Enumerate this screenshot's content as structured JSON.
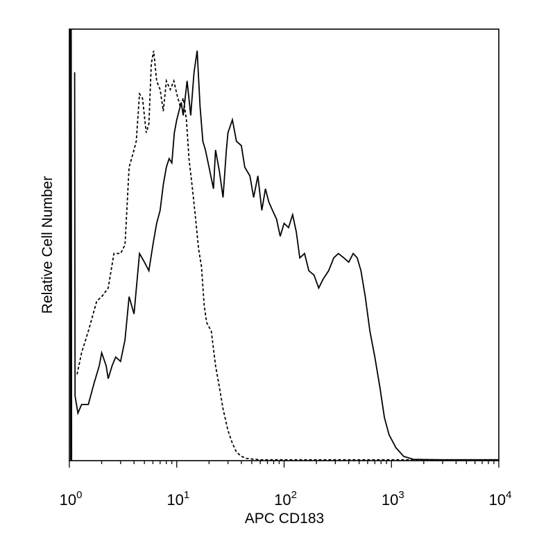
{
  "chart_data": {
    "type": "line",
    "title": "",
    "xlabel": "APC CD183",
    "ylabel": "Relative Cell Number",
    "x_scale": "log",
    "xlim": [
      1,
      10000
    ],
    "x_ticks": [
      {
        "value": 1,
        "base": "10",
        "exp": "0"
      },
      {
        "value": 10,
        "base": "10",
        "exp": "1"
      },
      {
        "value": 100,
        "base": "10",
        "exp": "2"
      },
      {
        "value": 1000,
        "base": "10",
        "exp": "3"
      },
      {
        "value": 10000,
        "base": "10",
        "exp": "4"
      }
    ],
    "ylim": [
      0,
      100
    ],
    "y_ticks": "none",
    "grid": false,
    "series": [
      {
        "style": "solid",
        "color": "#000000",
        "points": [
          [
            1.12,
            90
          ],
          [
            1.13,
            15
          ],
          [
            1.2,
            11
          ],
          [
            1.3,
            13
          ],
          [
            1.5,
            13
          ],
          [
            1.7,
            18
          ],
          [
            1.9,
            22
          ],
          [
            2.0,
            25
          ],
          [
            2.2,
            22
          ],
          [
            2.3,
            19
          ],
          [
            2.5,
            22
          ],
          [
            2.7,
            24
          ],
          [
            3.0,
            23
          ],
          [
            3.3,
            28
          ],
          [
            3.6,
            38
          ],
          [
            4.0,
            34
          ],
          [
            4.5,
            48
          ],
          [
            5.0,
            46
          ],
          [
            5.5,
            44
          ],
          [
            6.0,
            50
          ],
          [
            6.5,
            55
          ],
          [
            7.0,
            58
          ],
          [
            7.5,
            64
          ],
          [
            8.0,
            68
          ],
          [
            8.5,
            70
          ],
          [
            9.0,
            69
          ],
          [
            9.5,
            76
          ],
          [
            10.0,
            79
          ],
          [
            11.0,
            83
          ],
          [
            11.5,
            80
          ],
          [
            12.5,
            88
          ],
          [
            13.5,
            80
          ],
          [
            14.5,
            90
          ],
          [
            15.5,
            95
          ],
          [
            16.5,
            82
          ],
          [
            17.5,
            74
          ],
          [
            18.5,
            72
          ],
          [
            20.0,
            68
          ],
          [
            22.0,
            63
          ],
          [
            23.0,
            72
          ],
          [
            25.0,
            67
          ],
          [
            27.0,
            61
          ],
          [
            29.0,
            72
          ],
          [
            30.0,
            76
          ],
          [
            33.0,
            79
          ],
          [
            36.0,
            74
          ],
          [
            40.0,
            73
          ],
          [
            43.0,
            68
          ],
          [
            48.0,
            66
          ],
          [
            52.0,
            61
          ],
          [
            57.0,
            66
          ],
          [
            62.0,
            58
          ],
          [
            67.0,
            63
          ],
          [
            72.0,
            60
          ],
          [
            78.0,
            58
          ],
          [
            85.0,
            56
          ],
          [
            92.0,
            52
          ],
          [
            100.0,
            55
          ],
          [
            110.0,
            54
          ],
          [
            120.0,
            57
          ],
          [
            130.0,
            53
          ],
          [
            140.0,
            47
          ],
          [
            155.0,
            48
          ],
          [
            170.0,
            44
          ],
          [
            190.0,
            43
          ],
          [
            210.0,
            40
          ],
          [
            230.0,
            42
          ],
          [
            260.0,
            44
          ],
          [
            290.0,
            47
          ],
          [
            320.0,
            48
          ],
          [
            360.0,
            47
          ],
          [
            400.0,
            46
          ],
          [
            440.0,
            48
          ],
          [
            480.0,
            47
          ],
          [
            520.0,
            44
          ],
          [
            570.0,
            38
          ],
          [
            630.0,
            30
          ],
          [
            700.0,
            24
          ],
          [
            780.0,
            17
          ],
          [
            860.0,
            10
          ],
          [
            950.0,
            6
          ],
          [
            1100.0,
            3
          ],
          [
            1300.0,
            1
          ],
          [
            1600.0,
            0.3
          ],
          [
            3000.0,
            0.2
          ],
          [
            10000.0,
            0.2
          ]
        ]
      },
      {
        "style": "dashed",
        "color": "#000000",
        "points": [
          [
            1.18,
            20
          ],
          [
            1.3,
            25
          ],
          [
            1.5,
            30
          ],
          [
            1.8,
            37
          ],
          [
            2.0,
            38
          ],
          [
            2.3,
            40
          ],
          [
            2.6,
            48
          ],
          [
            3.0,
            48
          ],
          [
            3.3,
            50
          ],
          [
            3.6,
            68
          ],
          [
            3.8,
            70
          ],
          [
            4.2,
            74
          ],
          [
            4.5,
            85
          ],
          [
            4.8,
            84
          ],
          [
            5.2,
            76
          ],
          [
            5.5,
            78
          ],
          [
            5.8,
            92
          ],
          [
            6.1,
            95
          ],
          [
            6.5,
            88
          ],
          [
            7.0,
            86
          ],
          [
            7.5,
            81
          ],
          [
            8.0,
            88
          ],
          [
            8.7,
            86
          ],
          [
            9.4,
            88
          ],
          [
            10.0,
            85
          ],
          [
            10.8,
            82
          ],
          [
            11.5,
            84
          ],
          [
            12.3,
            79
          ],
          [
            13.0,
            70
          ],
          [
            14.0,
            63
          ],
          [
            15.0,
            56
          ],
          [
            16.0,
            49
          ],
          [
            17.0,
            45
          ],
          [
            18.0,
            36
          ],
          [
            19.0,
            32
          ],
          [
            21.0,
            30
          ],
          [
            23.0,
            22
          ],
          [
            25.0,
            17
          ],
          [
            27.0,
            12
          ],
          [
            30.0,
            7
          ],
          [
            33.0,
            4
          ],
          [
            36.0,
            2
          ],
          [
            40.0,
            1
          ],
          [
            45.0,
            0.5
          ],
          [
            60.0,
            0.2
          ],
          [
            10000.0,
            0.2
          ]
        ]
      },
      {
        "style": "solid",
        "color": "#000000",
        "points": [
          [
            1.03,
            100
          ],
          [
            1.04,
            0
          ]
        ]
      }
    ]
  }
}
